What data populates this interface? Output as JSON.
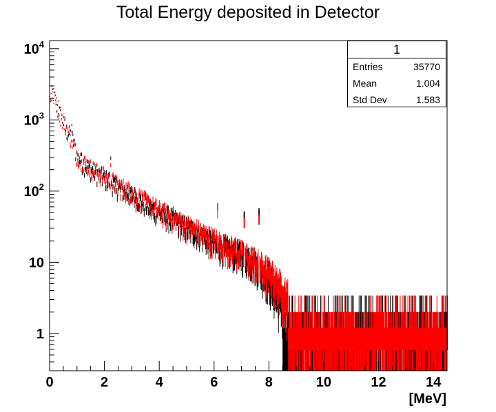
{
  "chart_data": {
    "type": "histogram",
    "title": "Total Energy deposited in Detector",
    "xlabel": "[MeV]",
    "ylabel": "",
    "xlim": [
      0,
      14.5
    ],
    "ylim": [
      0.3,
      13000
    ],
    "yscale": "log",
    "x_ticks": [
      "0",
      "2",
      "4",
      "6",
      "8",
      "10",
      "12",
      "14"
    ],
    "y_ticks": [
      {
        "value": 1,
        "base": "1",
        "exp": ""
      },
      {
        "value": 10,
        "base": "10",
        "exp": ""
      },
      {
        "value": 100,
        "base": "10",
        "exp": "2"
      },
      {
        "value": 1000,
        "base": "10",
        "exp": "3"
      },
      {
        "value": 10000,
        "base": "10",
        "exp": "4"
      }
    ],
    "grid": false,
    "series": [
      {
        "color": "#000000",
        "points": [
          [
            0.0,
            1900
          ],
          [
            0.1,
            2500
          ],
          [
            0.2,
            2000
          ],
          [
            0.3,
            1500
          ],
          [
            0.4,
            1100
          ],
          [
            0.5,
            950
          ],
          [
            0.6,
            700
          ],
          [
            0.8,
            600
          ],
          [
            0.9,
            450
          ],
          [
            1.0,
            300
          ],
          [
            1.2,
            250
          ],
          [
            1.5,
            200
          ],
          [
            1.8,
            170
          ],
          [
            2.0,
            150
          ],
          [
            2.2,
            140
          ],
          [
            2.5,
            110
          ],
          [
            3.0,
            90
          ],
          [
            3.5,
            65
          ],
          [
            4.0,
            50
          ],
          [
            4.5,
            40
          ],
          [
            5.0,
            30
          ],
          [
            5.5,
            25
          ],
          [
            6.0,
            18
          ],
          [
            6.5,
            15
          ],
          [
            7.0,
            13
          ],
          [
            7.5,
            10
          ],
          [
            8.0,
            6
          ],
          [
            8.5,
            3
          ],
          [
            9.0,
            2
          ],
          [
            10.0,
            1
          ],
          [
            12.0,
            1
          ],
          [
            14.0,
            1
          ]
        ]
      },
      {
        "color": "#ff0000",
        "points": [
          [
            0.0,
            1800
          ],
          [
            0.1,
            2400
          ],
          [
            0.2,
            1900
          ],
          [
            0.4,
            1200
          ],
          [
            0.6,
            800
          ],
          [
            0.8,
            550
          ],
          [
            1.0,
            320
          ],
          [
            1.5,
            210
          ],
          [
            2.0,
            160
          ],
          [
            2.5,
            120
          ],
          [
            3.0,
            95
          ],
          [
            3.5,
            70
          ],
          [
            4.0,
            52
          ],
          [
            4.5,
            42
          ],
          [
            5.0,
            32
          ],
          [
            5.5,
            26
          ],
          [
            6.0,
            20
          ],
          [
            6.5,
            16
          ],
          [
            7.0,
            13
          ],
          [
            7.5,
            10
          ],
          [
            8.0,
            7
          ],
          [
            8.5,
            4
          ],
          [
            9.0,
            2
          ],
          [
            10.0,
            1
          ],
          [
            12.0,
            1
          ],
          [
            14.0,
            1
          ]
        ]
      }
    ],
    "peaks": [
      {
        "x": 0.81,
        "y": 850
      },
      {
        "x": 1.17,
        "y": 330
      },
      {
        "x": 2.23,
        "y": 290
      },
      {
        "x": 6.13,
        "y": 60
      },
      {
        "x": 7.1,
        "y": 45
      },
      {
        "x": 7.64,
        "y": 50
      }
    ],
    "stats": {
      "name": "1",
      "rows": [
        {
          "label": "Entries",
          "value": "35770"
        },
        {
          "label": "Mean",
          "value": "1.004"
        },
        {
          "label": "Std Dev",
          "value": "1.583"
        }
      ]
    }
  }
}
